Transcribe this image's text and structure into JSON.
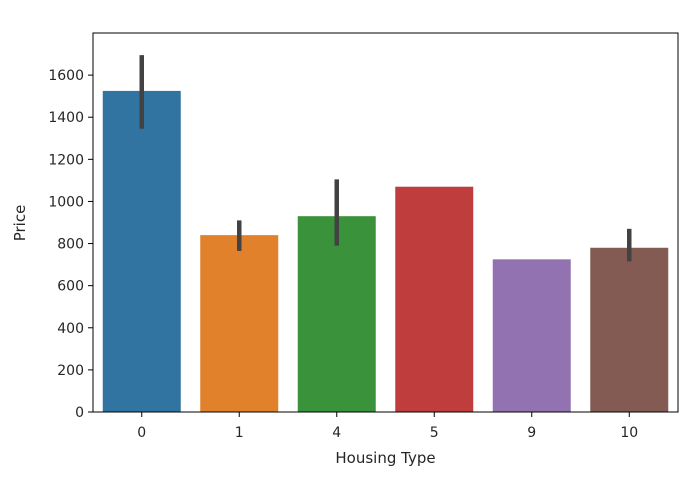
{
  "chart_data": {
    "type": "bar",
    "xlabel": "Housing Type",
    "ylabel": "Price",
    "ylim": [
      0,
      1800
    ],
    "yticks": [
      0,
      200,
      400,
      600,
      800,
      1000,
      1200,
      1400,
      1600
    ],
    "grid": false,
    "categories": [
      "0",
      "1",
      "4",
      "5",
      "9",
      "10"
    ],
    "values": [
      1525,
      840,
      930,
      1070,
      725,
      780
    ],
    "error_low": [
      1345,
      765,
      790,
      1070,
      725,
      715
    ],
    "error_high": [
      1695,
      910,
      1105,
      1070,
      725,
      870
    ],
    "colors": [
      "#3274a1",
      "#e1812c",
      "#3a923a",
      "#c03d3e",
      "#9372b2",
      "#845b53"
    ],
    "error_color": "#424242"
  }
}
